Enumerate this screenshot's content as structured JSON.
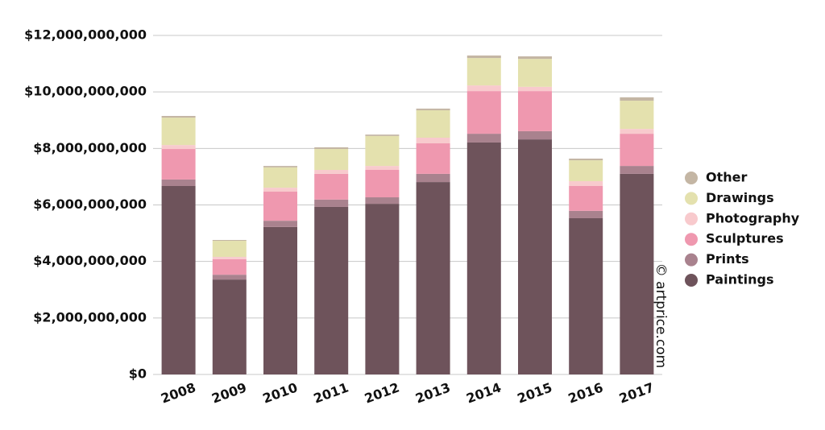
{
  "chart_data": {
    "type": "stacked_bar",
    "categories": [
      "2008",
      "2009",
      "2010",
      "2011",
      "2012",
      "2013",
      "2014",
      "2015",
      "2016",
      "2017"
    ],
    "series": [
      {
        "name": "Paintings",
        "color": "#6e535b",
        "values": [
          6670000000,
          3360000000,
          5220000000,
          5930000000,
          6040000000,
          6810000000,
          8210000000,
          8320000000,
          5530000000,
          7100000000
        ]
      },
      {
        "name": "Prints",
        "color": "#a9828e",
        "values": [
          230000000,
          170000000,
          220000000,
          260000000,
          230000000,
          290000000,
          310000000,
          290000000,
          260000000,
          280000000
        ]
      },
      {
        "name": "Sculptures",
        "color": "#ef98af",
        "values": [
          1080000000,
          550000000,
          1030000000,
          910000000,
          970000000,
          1080000000,
          1510000000,
          1420000000,
          880000000,
          1140000000
        ]
      },
      {
        "name": "Photography",
        "color": "#f8cacd",
        "values": [
          140000000,
          80000000,
          140000000,
          140000000,
          140000000,
          200000000,
          200000000,
          150000000,
          170000000,
          170000000
        ]
      },
      {
        "name": "Drawings",
        "color": "#e4e1ae",
        "values": [
          970000000,
          570000000,
          720000000,
          740000000,
          1060000000,
          970000000,
          970000000,
          990000000,
          740000000,
          1000000000
        ]
      },
      {
        "name": "Other",
        "color": "#c4b6a4",
        "values": [
          60000000,
          30000000,
          50000000,
          60000000,
          50000000,
          60000000,
          90000000,
          90000000,
          60000000,
          120000000
        ]
      }
    ],
    "ylim": [
      0,
      12000000000
    ],
    "yticks": [
      {
        "value": 0,
        "label": "$0"
      },
      {
        "value": 2000000000,
        "label": "$2,000,000,000"
      },
      {
        "value": 4000000000,
        "label": "$4,000,000,000"
      },
      {
        "value": 6000000000,
        "label": "$6,000,000,000"
      },
      {
        "value": 8000000000,
        "label": "$8,000,000,000"
      },
      {
        "value": 10000000000,
        "label": "$10,000,000,000"
      },
      {
        "value": 12000000000,
        "label": "$12,000,000,000"
      }
    ],
    "grid": true,
    "legend": "right",
    "watermark": "© artprice.com"
  }
}
